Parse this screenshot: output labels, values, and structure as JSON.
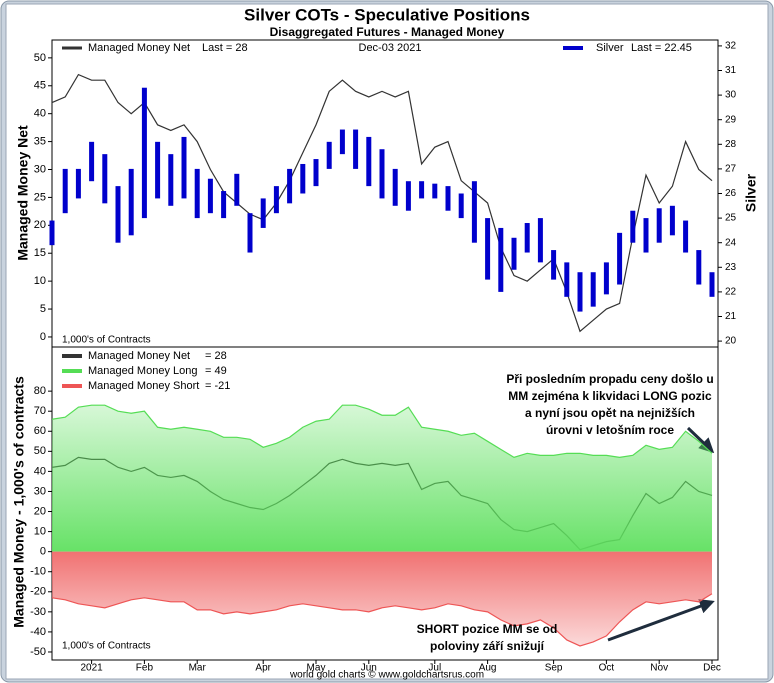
{
  "title": "Silver COTs - Speculative Positions",
  "subtitle": "Disaggregated Futures - Managed Money",
  "footer": "world gold charts © www.goldchartsrus.com",
  "chart_data": [
    {
      "type": "line",
      "ylabel": "Managed Money Net",
      "y2label": "Silver",
      "date_label": "Dec-03  2021",
      "note": "1,000's of Contracts",
      "ylim": [
        -1.8,
        53.2
      ],
      "yticks": [
        0,
        5,
        10,
        15,
        20,
        25,
        30,
        35,
        40,
        45,
        50
      ],
      "y2lim": [
        19.76,
        32.24
      ],
      "y2ticks": [
        20,
        21,
        22,
        23,
        24,
        25,
        26,
        27,
        28,
        29,
        30,
        31,
        32
      ],
      "series": [
        {
          "name": "Managed Money Net",
          "last_label": "Last = 28",
          "color": "#333333",
          "values": [
            42,
            43,
            47,
            46,
            46,
            42,
            40,
            42,
            38,
            37,
            38,
            35,
            30,
            26,
            24,
            22,
            21,
            24,
            28,
            33,
            38,
            44,
            46,
            44,
            43,
            44,
            43,
            44,
            31,
            34,
            35,
            28,
            26,
            24,
            16,
            11,
            10,
            12,
            14,
            8,
            1,
            3,
            5,
            6,
            18,
            29,
            24,
            27,
            35,
            30,
            28
          ]
        },
        {
          "name": "Silver",
          "last_label": "Last = 22.45",
          "color": "#0000cc",
          "axis": "y2",
          "low": [
            23.9,
            25.2,
            25.8,
            26.5,
            25.6,
            24.0,
            24.3,
            25.0,
            25.8,
            25.5,
            25.8,
            25.0,
            25.2,
            25.0,
            25.5,
            23.6,
            24.6,
            25.2,
            25.6,
            26.0,
            26.3,
            27.0,
            27.6,
            27.0,
            26.3,
            25.8,
            25.5,
            25.3,
            25.8,
            25.8,
            25.3,
            25.0,
            24.0,
            22.5,
            22.0,
            22.9,
            23.6,
            23.2,
            22.5,
            21.8,
            21.2,
            21.4,
            21.9,
            22.3,
            24.0,
            23.6,
            24.0,
            24.3,
            23.6,
            22.3,
            21.8
          ],
          "high": [
            24.9,
            27.0,
            27.0,
            28.1,
            27.6,
            26.3,
            27.0,
            30.3,
            28.1,
            27.6,
            28.3,
            27.0,
            26.6,
            26.1,
            26.8,
            25.2,
            25.8,
            26.3,
            27.0,
            27.2,
            27.4,
            28.1,
            28.6,
            28.6,
            28.3,
            27.8,
            27.0,
            26.5,
            26.5,
            26.4,
            26.3,
            26.0,
            26.5,
            25.0,
            24.6,
            24.2,
            24.8,
            25.0,
            23.7,
            23.2,
            22.8,
            22.8,
            23.2,
            24.4,
            25.3,
            25.0,
            25.4,
            25.5,
            24.9,
            23.7,
            22.8
          ]
        }
      ]
    },
    {
      "type": "area",
      "ylabel": "Managed Money - 1,000's of contracts",
      "note": "1,000's of Contracts",
      "categories": [
        null,
        null,
        null,
        "2021",
        null,
        null,
        null,
        "Feb",
        null,
        null,
        null,
        "Mar",
        null,
        null,
        null,
        null,
        "Apr",
        null,
        null,
        null,
        "May",
        null,
        null,
        null,
        "Jun",
        null,
        null,
        null,
        null,
        "Jul",
        null,
        null,
        null,
        "Aug",
        null,
        null,
        null,
        null,
        "Sep",
        null,
        null,
        null,
        "Oct",
        null,
        null,
        null,
        "Nov",
        null,
        null,
        null,
        "Dec"
      ],
      "ylim": [
        -54,
        102
      ],
      "yticks": [
        -50,
        -40,
        -30,
        -20,
        -10,
        0,
        10,
        20,
        30,
        40,
        50,
        60,
        70,
        80
      ],
      "series": [
        {
          "name": "Managed Money Net",
          "last_label": "= 28",
          "color": "#333333",
          "values": [
            42,
            43,
            47,
            46,
            46,
            42,
            40,
            42,
            38,
            37,
            38,
            35,
            30,
            26,
            24,
            22,
            21,
            24,
            28,
            33,
            38,
            44,
            46,
            44,
            43,
            44,
            43,
            44,
            31,
            34,
            35,
            28,
            26,
            24,
            16,
            11,
            10,
            12,
            14,
            8,
            1,
            3,
            5,
            6,
            18,
            29,
            24,
            27,
            35,
            30,
            28
          ]
        },
        {
          "name": "Managed Money Long",
          "last_label": "= 49",
          "color": "#55dd55",
          "fill": "#5fe05f",
          "values": [
            66,
            67,
            72,
            73,
            73,
            70,
            69,
            70,
            62,
            61,
            62,
            61,
            60,
            57,
            57,
            56,
            52,
            54,
            57,
            62,
            65,
            66,
            73,
            73,
            71,
            68,
            68,
            72,
            62,
            61,
            60,
            58,
            59,
            55,
            51,
            47,
            49,
            48,
            48,
            49,
            49,
            48,
            48,
            47,
            48,
            53,
            51,
            52,
            60,
            55,
            49
          ]
        },
        {
          "name": "Managed Money Short",
          "last_label": "= -21",
          "color": "#ee5555",
          "fill": "#f06a6a",
          "values": [
            -23,
            -24,
            -26,
            -27,
            -28,
            -26,
            -24,
            -23,
            -24,
            -25,
            -25,
            -29,
            -29,
            -31,
            -30,
            -31,
            -30,
            -29,
            -27,
            -26,
            -27,
            -28,
            -29,
            -29,
            -30,
            -28,
            -27,
            -28,
            -29,
            -28,
            -26,
            -27,
            -29,
            -30,
            -34,
            -37,
            -36,
            -34,
            -38,
            -44,
            -47,
            -45,
            -42,
            -35,
            -29,
            -25,
            -26,
            -25,
            -24,
            -25,
            -21
          ]
        }
      ],
      "annotations": [
        {
          "lines": [
            "Při posledním propadu ceny došlo u",
            "MM zejména k likvidaci LONG pozic",
            "a nyní jsou opět na nejnižších",
            "úrovni v letošním roce"
          ]
        },
        {
          "lines": [
            "SHORT pozice MM se od",
            "poloviny září snižují"
          ]
        }
      ]
    }
  ]
}
